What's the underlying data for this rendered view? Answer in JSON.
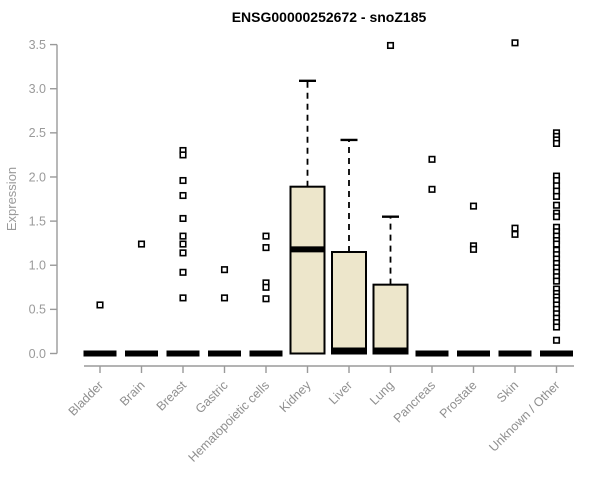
{
  "chart_data": {
    "type": "boxplot",
    "title": "ENSG00000252672 - snoZ185",
    "xlabel": "",
    "ylabel": "Expression",
    "ylim": [
      0.0,
      3.5
    ],
    "yticks": [
      "0.0",
      "0.5",
      "1.0",
      "1.5",
      "2.0",
      "2.5",
      "3.0",
      "3.5"
    ],
    "grid": "off",
    "legend": "none",
    "categories": [
      "Bladder",
      "Brain",
      "Breast",
      "Gastric",
      "Hematopoietic cells",
      "Kidney",
      "Liver",
      "Lung",
      "Pancreas",
      "Prostate",
      "Skin",
      "Unknown / Other"
    ],
    "boxes": [
      {
        "category": "Bladder",
        "q1": 0,
        "median": 0,
        "q3": 0,
        "whisker_low": 0,
        "whisker_high": 0,
        "outliers": [
          0.55
        ]
      },
      {
        "category": "Brain",
        "q1": 0,
        "median": 0,
        "q3": 0,
        "whisker_low": 0,
        "whisker_high": 0,
        "outliers": [
          1.24
        ]
      },
      {
        "category": "Breast",
        "q1": 0,
        "median": 0,
        "q3": 0,
        "whisker_low": 0,
        "whisker_high": 0,
        "outliers": [
          2.3,
          2.25,
          1.96,
          1.79,
          1.53,
          1.33,
          1.24,
          1.14,
          0.92,
          0.63
        ]
      },
      {
        "category": "Gastric",
        "q1": 0,
        "median": 0,
        "q3": 0,
        "whisker_low": 0,
        "whisker_high": 0,
        "outliers": [
          0.95,
          0.63
        ]
      },
      {
        "category": "Hematopoietic cells",
        "q1": 0,
        "median": 0,
        "q3": 0,
        "whisker_low": 0,
        "whisker_high": 0,
        "outliers": [
          1.33,
          1.2,
          0.8,
          0.75,
          0.62
        ]
      },
      {
        "category": "Kidney",
        "q1": 0,
        "median": 1.18,
        "q3": 1.89,
        "whisker_low": 0,
        "whisker_high": 3.09,
        "outliers": []
      },
      {
        "category": "Liver",
        "q1": 0,
        "median": 0.02,
        "q3": 1.15,
        "whisker_low": 0,
        "whisker_high": 2.42,
        "outliers": []
      },
      {
        "category": "Lung",
        "q1": 0,
        "median": 0.02,
        "q3": 0.78,
        "whisker_low": 0,
        "whisker_high": 1.55,
        "outliers": [
          3.49
        ]
      },
      {
        "category": "Pancreas",
        "q1": 0,
        "median": 0,
        "q3": 0,
        "whisker_low": 0,
        "whisker_high": 0,
        "outliers": [
          2.2,
          1.86
        ]
      },
      {
        "category": "Prostate",
        "q1": 0,
        "median": 0,
        "q3": 0,
        "whisker_low": 0,
        "whisker_high": 0,
        "outliers": [
          1.67,
          1.22,
          1.18
        ]
      },
      {
        "category": "Skin",
        "q1": 0,
        "median": 0,
        "q3": 0,
        "whisker_low": 0,
        "whisker_high": 0,
        "outliers": [
          3.52,
          1.42,
          1.35
        ]
      },
      {
        "category": "Unknown / Other",
        "q1": 0,
        "median": 0,
        "q3": 0,
        "whisker_low": 0,
        "whisker_high": 0,
        "outliers": [
          2.5,
          2.46,
          2.42,
          2.38,
          2.01,
          1.96,
          1.9,
          1.84,
          1.78,
          1.68,
          1.59,
          1.55,
          1.43,
          1.38,
          1.33,
          1.28,
          1.24,
          1.17,
          1.12,
          1.07,
          1.02,
          0.97,
          0.92,
          0.87,
          0.82,
          0.73,
          0.68,
          0.64,
          0.6,
          0.55,
          0.5,
          0.45,
          0.4,
          0.35,
          0.3,
          0.15
        ]
      }
    ],
    "colors": {
      "box_fill": "#ede6cb",
      "box_stroke": "#000000",
      "median": "#000000",
      "outlier_fill": "#ffffff",
      "outlier_stroke": "#000000",
      "axis": "#9a9a9a",
      "tick_label": "#9a9a9a",
      "title": "#000000",
      "background": "#ffffff"
    }
  }
}
